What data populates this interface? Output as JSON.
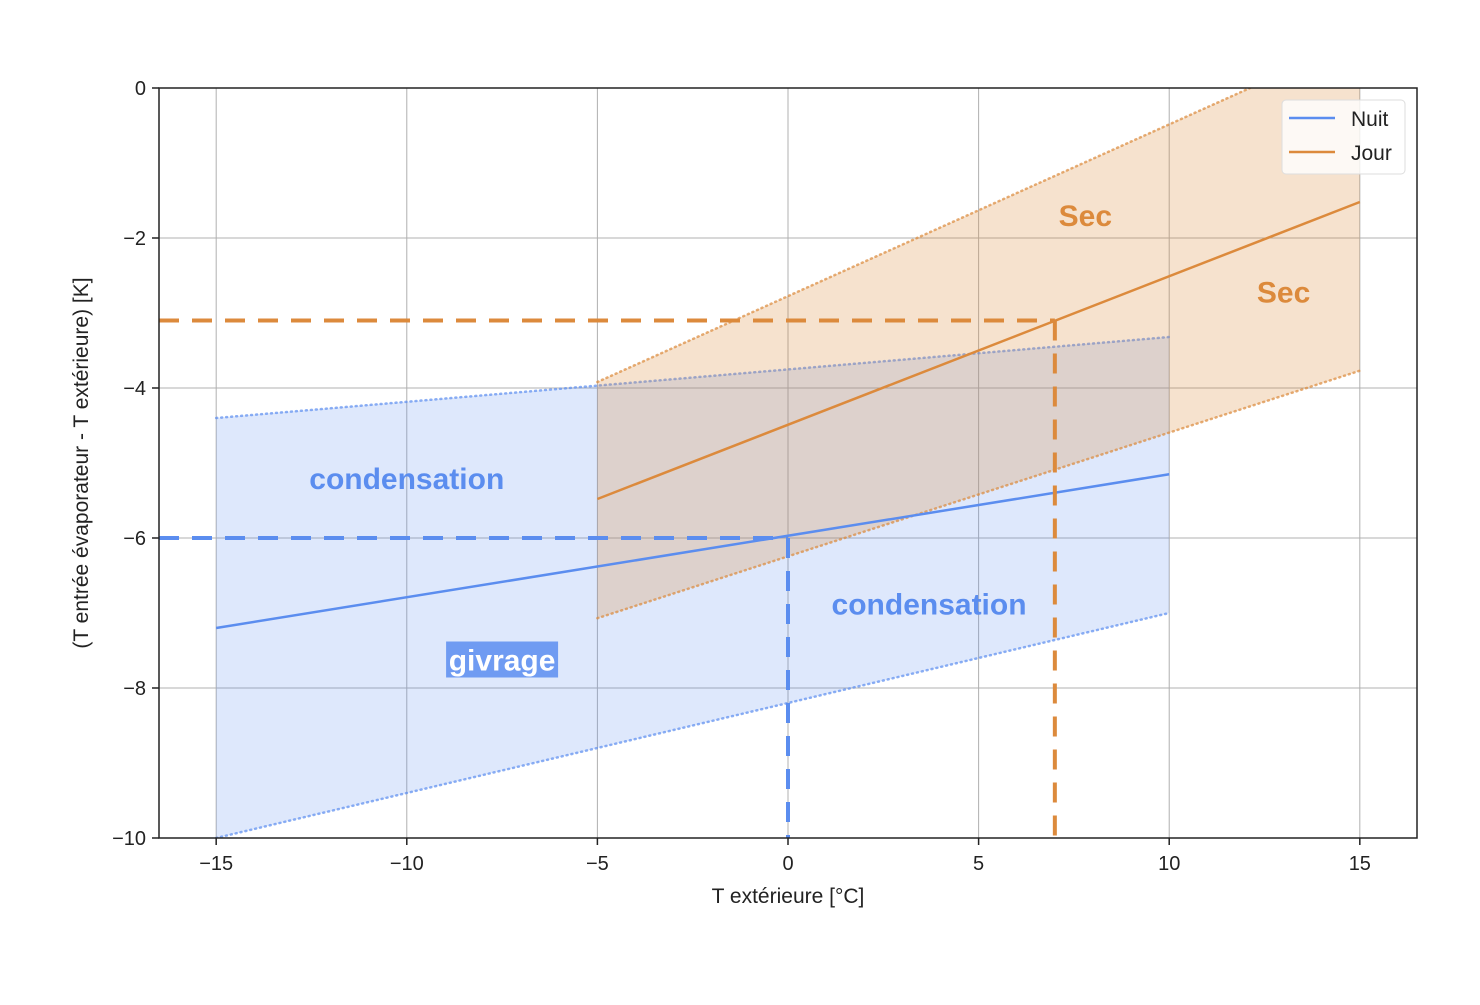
{
  "chart_data": {
    "type": "area",
    "xlabel": "T extérieure [°C]",
    "ylabel": "(T entrée évaporateur - T extérieure) [K]",
    "xlim": [
      -16.5,
      16.5
    ],
    "ylim": [
      -10,
      0
    ],
    "grid": true,
    "x_ticks": [
      -15,
      -10,
      -5,
      0,
      5,
      10,
      15
    ],
    "x_tick_labels": [
      "−15",
      "−10",
      "−5",
      "0",
      "5",
      "10",
      "15"
    ],
    "y_ticks": [
      0,
      -2,
      -4,
      -6,
      -8,
      -10
    ],
    "y_tick_labels": [
      "0",
      "−2",
      "−4",
      "−6",
      "−8",
      "−10"
    ],
    "legend": {
      "placement": "top-right",
      "entries": [
        "Nuit",
        "Jour"
      ]
    },
    "series": [
      {
        "name": "Nuit",
        "color": "#5b8def",
        "x": [
          -15,
          10
        ],
        "y": [
          -7.2,
          -5.15
        ],
        "band": {
          "x": [
            -15,
            10
          ],
          "upper": [
            -4.4,
            -3.32
          ],
          "lower": [
            -10.0,
            -7.0
          ]
        }
      },
      {
        "name": "Jour",
        "color": "#dc8a3c",
        "x": [
          -5,
          15
        ],
        "y": [
          -5.48,
          -1.52
        ],
        "band": {
          "x": [
            -5,
            15
          ],
          "upper": [
            -3.92,
            0.66
          ],
          "lower": [
            -7.07,
            -3.77
          ]
        }
      }
    ],
    "reference_lines": [
      {
        "series": "Nuit",
        "x": 0,
        "y": -6.0
      },
      {
        "series": "Jour",
        "x": 7,
        "y": -3.1
      }
    ],
    "annotations": [
      {
        "text": "condensation",
        "x": -10,
        "y": -5.2,
        "color": "#5b8def",
        "boxed": false
      },
      {
        "text": "condensation",
        "x": 3.7,
        "y": -6.87,
        "color": "#5b8def",
        "boxed": false
      },
      {
        "text": "givrage",
        "x": -7.5,
        "y": -7.62,
        "color": "#ffffff",
        "boxed": true
      },
      {
        "text": "Sec",
        "x": 7.8,
        "y": -1.69,
        "color": "#dc8a3c",
        "boxed": false
      },
      {
        "text": "Sec",
        "x": 13,
        "y": -2.71,
        "color": "#dc8a3c",
        "boxed": false
      }
    ]
  }
}
